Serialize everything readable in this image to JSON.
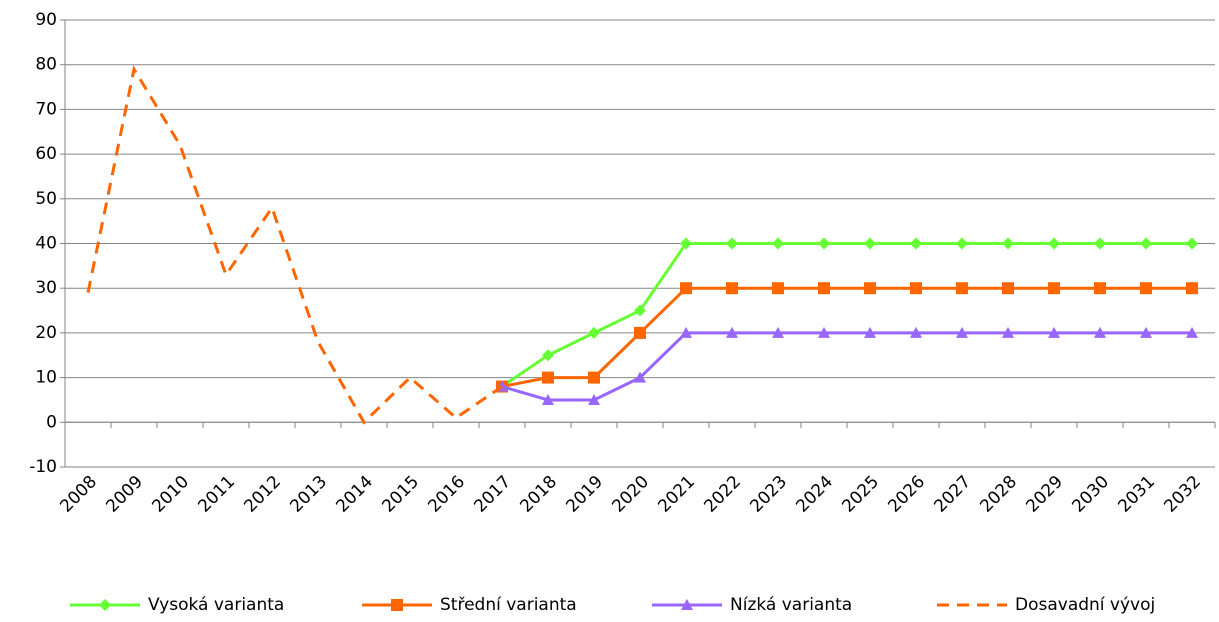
{
  "chart_data": {
    "type": "line",
    "categories": [
      "2008",
      "2009",
      "2010",
      "2011",
      "2012",
      "2013",
      "2014",
      "2015",
      "2016",
      "2017",
      "2018",
      "2019",
      "2020",
      "2021",
      "2022",
      "2023",
      "2024",
      "2025",
      "2026",
      "2027",
      "2028",
      "2029",
      "2030",
      "2031",
      "2032"
    ],
    "series": [
      {
        "name": "Vysoká varianta",
        "color": "#66ff33",
        "marker": "diamond",
        "dashed": false,
        "values": [
          null,
          null,
          null,
          null,
          null,
          null,
          null,
          null,
          null,
          8,
          15,
          20,
          25,
          40,
          40,
          40,
          40,
          40,
          40,
          40,
          40,
          40,
          40,
          40,
          40
        ]
      },
      {
        "name": "Střední varianta",
        "color": "#ff6600",
        "marker": "square",
        "dashed": false,
        "values": [
          null,
          null,
          null,
          null,
          null,
          null,
          null,
          null,
          null,
          8,
          10,
          10,
          20,
          30,
          30,
          30,
          30,
          30,
          30,
          30,
          30,
          30,
          30,
          30,
          30
        ]
      },
      {
        "name": "Nízká varianta",
        "color": "#9966ff",
        "marker": "triangle",
        "dashed": false,
        "values": [
          null,
          null,
          null,
          null,
          null,
          null,
          null,
          null,
          null,
          8,
          5,
          5,
          10,
          20,
          20,
          20,
          20,
          20,
          20,
          20,
          20,
          20,
          20,
          20,
          20
        ]
      },
      {
        "name": "Dosavadní vývoj",
        "color": "#ff6600",
        "marker": "none",
        "dashed": true,
        "values": [
          29,
          79,
          62,
          33,
          48,
          18,
          0,
          10,
          1,
          8,
          null,
          null,
          null,
          null,
          null,
          null,
          null,
          null,
          null,
          null,
          null,
          null,
          null,
          null,
          null
        ]
      }
    ],
    "ylim": [
      -10,
      90
    ],
    "yticks": [
      -10,
      0,
      10,
      20,
      30,
      40,
      50,
      60,
      70,
      80,
      90
    ],
    "grid": true,
    "legend": "bottom"
  }
}
